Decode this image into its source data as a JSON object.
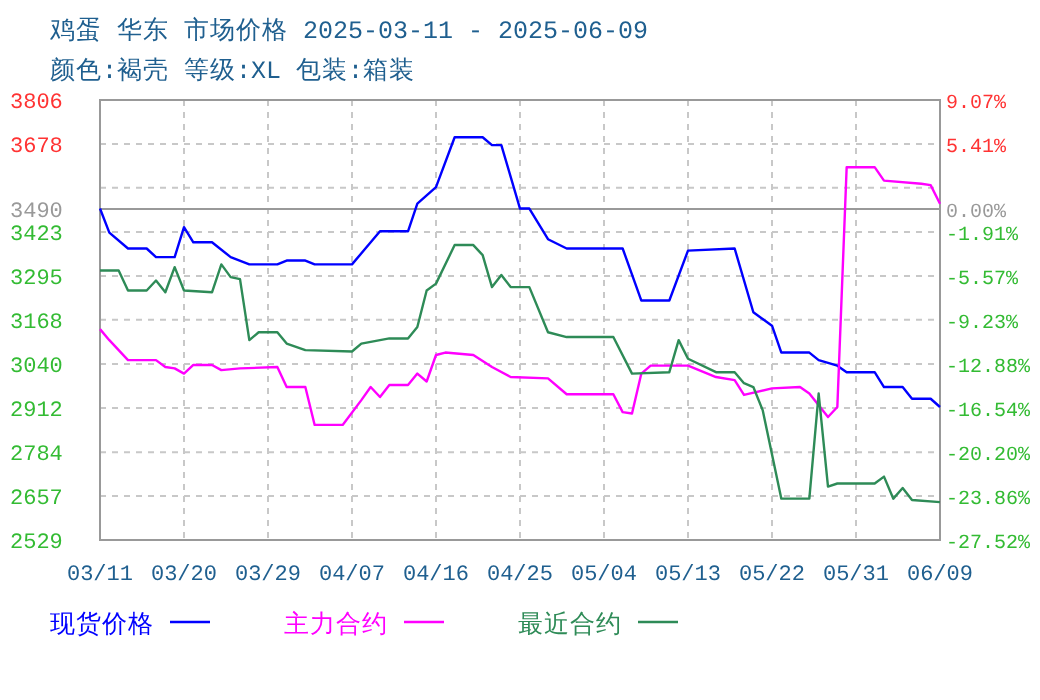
{
  "chart_data": {
    "type": "line",
    "title": "鸡蛋 华东 市场价格 2025-03-11 - 2025-06-09",
    "subtitle": "颜色:褐壳 等级:XL 包装:箱装",
    "series": [
      {
        "name": "现货价格",
        "color": "#0000ff",
        "x": [
          "2025-03-11",
          "2025-03-12",
          "2025-03-14",
          "2025-03-16",
          "2025-03-17",
          "2025-03-19",
          "2025-03-20",
          "2025-03-21",
          "2025-03-23",
          "2025-03-25",
          "2025-03-27",
          "2025-03-30",
          "2025-03-31",
          "2025-04-02",
          "2025-04-03",
          "2025-04-07",
          "2025-04-10",
          "2025-04-13",
          "2025-04-14",
          "2025-04-16",
          "2025-04-18",
          "2025-04-21",
          "2025-04-22",
          "2025-04-23",
          "2025-04-25",
          "2025-04-26",
          "2025-04-28",
          "2025-04-30",
          "2025-05-06",
          "2025-05-08",
          "2025-05-11",
          "2025-05-13",
          "2025-05-18",
          "2025-05-20",
          "2025-05-22",
          "2025-05-23",
          "2025-05-26",
          "2025-05-27",
          "2025-05-29",
          "2025-05-30",
          "2025-06-02",
          "2025-06-03",
          "2025-06-05",
          "2025-06-06",
          "2025-06-08",
          "2025-06-09"
        ],
        "values": [
          3491,
          3421,
          3375,
          3375,
          3350,
          3350,
          3437,
          3393,
          3393,
          3350,
          3329,
          3329,
          3340,
          3340,
          3329,
          3329,
          3425,
          3425,
          3505,
          3553,
          3698,
          3698,
          3675,
          3675,
          3491,
          3491,
          3402,
          3375,
          3375,
          3224,
          3224,
          3369,
          3375,
          3190,
          3151,
          3073,
          3073,
          3051,
          3035,
          3016,
          3016,
          2973,
          2973,
          2939,
          2939,
          2915
        ]
      },
      {
        "name": "主力合约",
        "color": "#ff00ff",
        "x": [
          "2025-03-11",
          "2025-03-12",
          "2025-03-14",
          "2025-03-17",
          "2025-03-18",
          "2025-03-19",
          "2025-03-20",
          "2025-03-21",
          "2025-03-23",
          "2025-03-24",
          "2025-03-26",
          "2025-03-30",
          "2025-03-31",
          "2025-04-02",
          "2025-04-03",
          "2025-04-06",
          "2025-04-08",
          "2025-04-09",
          "2025-04-10",
          "2025-04-11",
          "2025-04-13",
          "2025-04-14",
          "2025-04-15",
          "2025-04-16",
          "2025-04-17",
          "2025-04-20",
          "2025-04-22",
          "2025-04-24",
          "2025-04-28",
          "2025-04-30",
          "2025-05-05",
          "2025-05-06",
          "2025-05-07",
          "2025-05-08",
          "2025-05-09",
          "2025-05-13",
          "2025-05-16",
          "2025-05-18",
          "2025-05-19",
          "2025-05-22",
          "2025-05-25",
          "2025-05-26",
          "2025-05-28",
          "2025-05-29",
          "2025-05-30",
          "2025-06-02",
          "2025-06-03",
          "2025-06-07",
          "2025-06-08",
          "2025-06-09"
        ],
        "values": [
          3141,
          3109,
          3051,
          3051,
          3031,
          3027,
          3012,
          3037,
          3037,
          3022,
          3027,
          3031,
          2973,
          2973,
          2863,
          2863,
          2935,
          2973,
          2944,
          2979,
          2979,
          3012,
          2989,
          3066,
          3073,
          3066,
          3031,
          3002,
          2998,
          2952,
          2952,
          2900,
          2896,
          3012,
          3035,
          3035,
          3002,
          2993,
          2950,
          2969,
          2973,
          2954,
          2886,
          2915,
          3611,
          3611,
          3572,
          3563,
          3559,
          3505
        ]
      },
      {
        "name": "最近合约",
        "color": "#2e8b57",
        "x": [
          "2025-03-11",
          "2025-03-13",
          "2025-03-14",
          "2025-03-16",
          "2025-03-17",
          "2025-03-18",
          "2025-03-19",
          "2025-03-20",
          "2025-03-23",
          "2025-03-24",
          "2025-03-25",
          "2025-03-26",
          "2025-03-27",
          "2025-03-28",
          "2025-03-30",
          "2025-03-31",
          "2025-04-02",
          "2025-04-07",
          "2025-04-08",
          "2025-04-11",
          "2025-04-13",
          "2025-04-14",
          "2025-04-15",
          "2025-04-16",
          "2025-04-18",
          "2025-04-20",
          "2025-04-21",
          "2025-04-22",
          "2025-04-23",
          "2025-04-24",
          "2025-04-26",
          "2025-04-28",
          "2025-04-30",
          "2025-05-05",
          "2025-05-07",
          "2025-05-11",
          "2025-05-12",
          "2025-05-13",
          "2025-05-16",
          "2025-05-18",
          "2025-05-19",
          "2025-05-20",
          "2025-05-21",
          "2025-05-23",
          "2025-05-26",
          "2025-05-27",
          "2025-05-28",
          "2025-05-29",
          "2025-06-02",
          "2025-06-03",
          "2025-06-04",
          "2025-06-05",
          "2025-06-06",
          "2025-06-09"
        ],
        "values": [
          3311,
          3311,
          3253,
          3253,
          3282,
          3248,
          3321,
          3253,
          3248,
          3329,
          3292,
          3286,
          3109,
          3132,
          3132,
          3099,
          3080,
          3076,
          3099,
          3114,
          3114,
          3147,
          3253,
          3273,
          3385,
          3385,
          3356,
          3263,
          3298,
          3263,
          3263,
          3132,
          3118,
          3118,
          3012,
          3016,
          3109,
          3055,
          3016,
          3016,
          2984,
          2973,
          2906,
          2649,
          2649,
          2954,
          2684,
          2693,
          2693,
          2713,
          2649,
          2680,
          2645,
          2639
        ]
      }
    ],
    "xlim": [
      "2025-03-11",
      "2025-06-09"
    ],
    "xticks": [
      {
        "value": "2025-03-11",
        "label": "03/11"
      },
      {
        "value": "2025-03-20",
        "label": "03/20"
      },
      {
        "value": "2025-03-29",
        "label": "03/29"
      },
      {
        "value": "2025-04-07",
        "label": "04/07"
      },
      {
        "value": "2025-04-16",
        "label": "04/16"
      },
      {
        "value": "2025-04-25",
        "label": "04/25"
      },
      {
        "value": "2025-05-04",
        "label": "05/04"
      },
      {
        "value": "2025-05-13",
        "label": "05/13"
      },
      {
        "value": "2025-05-22",
        "label": "05/22"
      },
      {
        "value": "2025-05-31",
        "label": "05/31"
      },
      {
        "value": "2025-06-09",
        "label": "06/09"
      }
    ],
    "ylim": [
      2529,
      3806
    ],
    "yticks": [
      3806,
      3678,
      {
        "value": 3551,
        "label": null
      },
      3423,
      3295,
      3168,
      3040,
      2912,
      2784,
      2657,
      2529
    ],
    "y2lim": [
      -27.52,
      9.07
    ],
    "y2ticks": [
      {
        "value": 9.07,
        "label": "9.07%"
      },
      {
        "value": 5.41,
        "label": "5.41%"
      },
      {
        "value": 1.75,
        "label": null
      },
      {
        "value": 0,
        "label": "0.00%"
      },
      {
        "value": -1.91,
        "label": "-1.91%"
      },
      {
        "value": -5.57,
        "label": "-5.57%"
      },
      {
        "value": -9.23,
        "label": "-9.23%"
      },
      {
        "value": -12.88,
        "label": "-12.88%"
      },
      {
        "value": -16.54,
        "label": "-16.54%"
      },
      {
        "value": -20.2,
        "label": "-20.20%"
      },
      {
        "value": -23.86,
        "label": "-23.86%"
      },
      {
        "value": -27.52,
        "label": "-27.52%"
      }
    ],
    "ref_lines": [
      {
        "axis": "y",
        "value": 3490,
        "label": "3490",
        "color": "#999999"
      }
    ],
    "grid": true,
    "legend": "bottom"
  }
}
